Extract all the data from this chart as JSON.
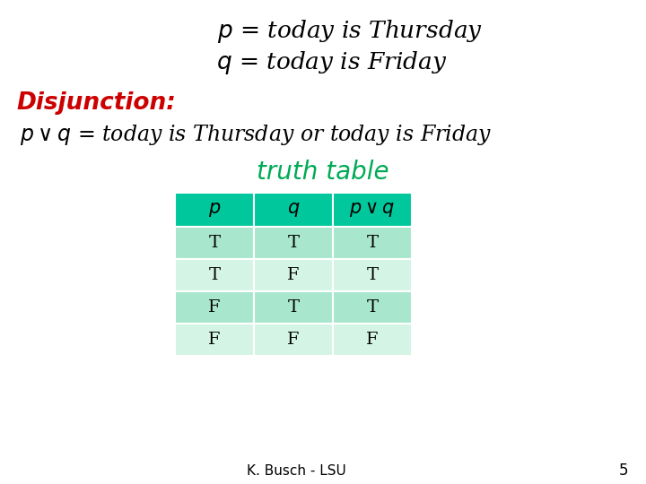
{
  "bg_color": "#ffffff",
  "title_p": "$p$ = today is Thursday",
  "title_q": "$q$ = today is Friday",
  "disjunction_label": "Disjunction:",
  "disjunction_formula": "$p \\vee q$ = today is Thursday or today is Friday",
  "truth_table_title": "truth table",
  "col_headers": [
    "$p$",
    "$q$",
    "$p \\vee q$"
  ],
  "rows": [
    [
      "T",
      "T",
      "T"
    ],
    [
      "T",
      "F",
      "T"
    ],
    [
      "F",
      "T",
      "T"
    ],
    [
      "F",
      "F",
      "F"
    ]
  ],
  "header_color": "#00C89C",
  "row_color_dark": "#A8E6CE",
  "row_color_light": "#D4F5E6",
  "truth_table_title_color": "#00AA55",
  "disjunction_color": "#CC0000",
  "text_color": "#000000",
  "footer_text": "K. Busch - LSU",
  "footer_number": "5"
}
